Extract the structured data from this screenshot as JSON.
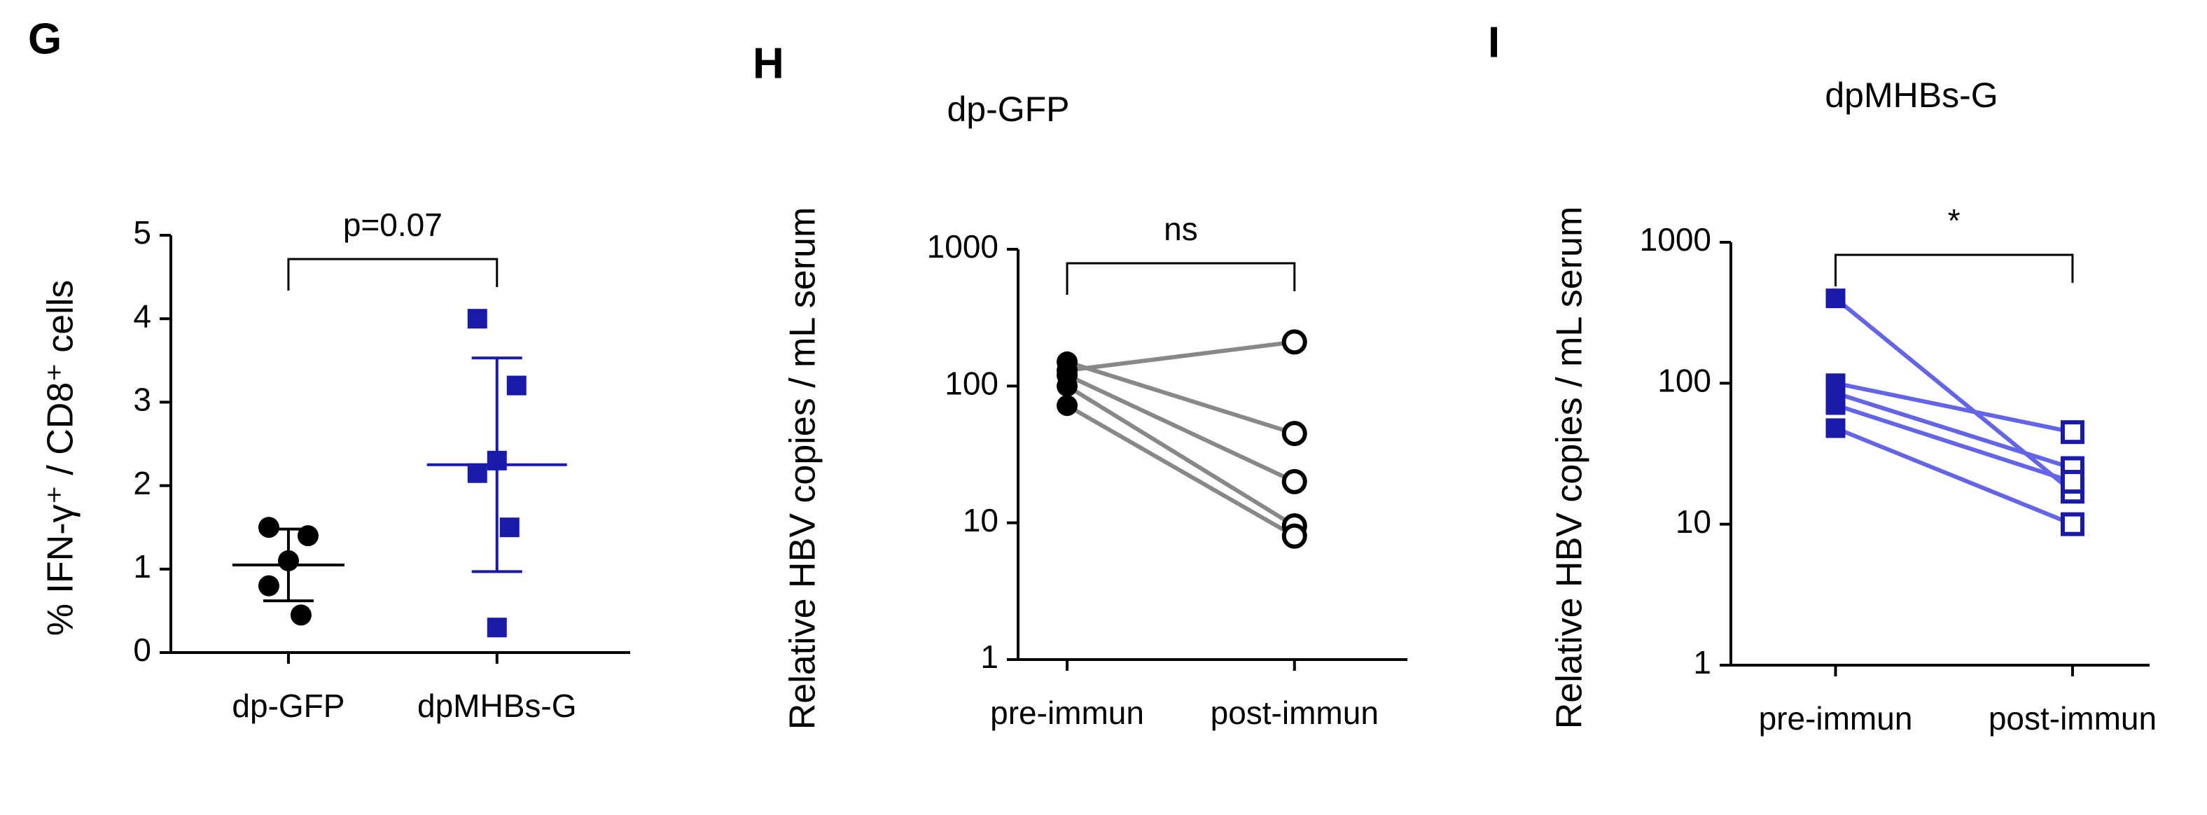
{
  "chart_data": [
    {
      "panel_label": "G",
      "type": "dot",
      "ylabel": "% IFN-γ⁺ / CD8⁺ cells",
      "categories": [
        "dp-GFP",
        "dpMHBs-G"
      ],
      "groups": [
        {
          "color": "#000000",
          "marker": "circle",
          "values": [
            1.5,
            1.4,
            1.1,
            0.8,
            0.45
          ],
          "mean": 1.05,
          "sd": 0.43
        },
        {
          "color": "#1a1aaa",
          "marker": "square",
          "values": [
            4.0,
            3.2,
            2.3,
            2.15,
            1.5,
            0.3
          ],
          "mean": 2.25,
          "sd": 1.28
        }
      ],
      "annotation": "p=0.07",
      "ylim": [
        0,
        5
      ],
      "yticks": [
        0,
        1,
        2,
        3,
        4,
        5
      ]
    },
    {
      "panel_label": "H",
      "type": "line",
      "title": "dp-GFP",
      "ylabel": "Relative HBV copies / mL serum",
      "categories": [
        "pre-immun",
        "post-immun"
      ],
      "log_scale": true,
      "marker": "circle",
      "marker_color": "#000000",
      "line_color": "#888888",
      "marker_fill": [
        "filled",
        "open"
      ],
      "series": [
        {
          "values": [
            130,
            210
          ]
        },
        {
          "values": [
            150,
            45
          ]
        },
        {
          "values": [
            120,
            20
          ]
        },
        {
          "values": [
            100,
            9.5
          ]
        },
        {
          "values": [
            72,
            8
          ]
        }
      ],
      "annotation": "ns",
      "ylim": [
        1,
        1000
      ],
      "yticks": [
        1,
        10,
        100,
        1000
      ]
    },
    {
      "panel_label": "I",
      "type": "line",
      "title": "dpMHBs-G",
      "ylabel": "Relative HBV copies / mL serum",
      "categories": [
        "pre-immun",
        "post-immun"
      ],
      "log_scale": true,
      "marker": "square",
      "marker_color": "#1a1aaa",
      "line_color": "#6464e8",
      "marker_fill": [
        "filled",
        "open"
      ],
      "series": [
        {
          "values": [
            400,
            17
          ]
        },
        {
          "values": [
            100,
            45
          ]
        },
        {
          "values": [
            85,
            25
          ]
        },
        {
          "values": [
            70,
            20
          ]
        },
        {
          "values": [
            48,
            10
          ]
        }
      ],
      "annotation": "*",
      "ylim": [
        1,
        1000
      ],
      "yticks": [
        1,
        10,
        100,
        1000
      ]
    }
  ]
}
